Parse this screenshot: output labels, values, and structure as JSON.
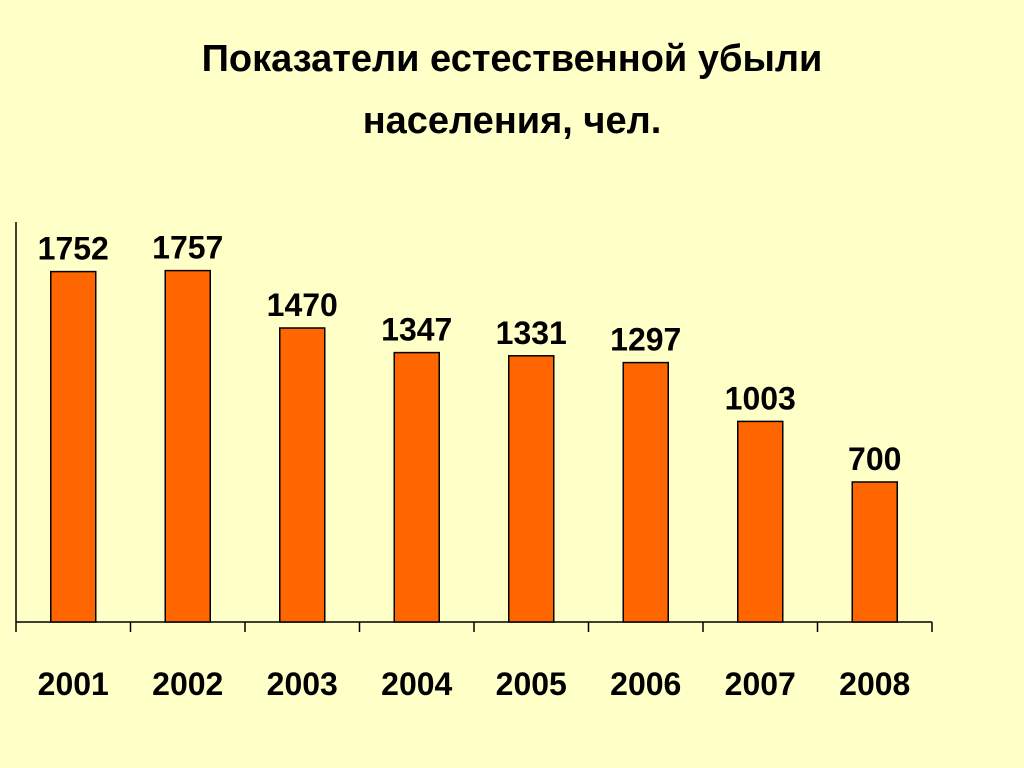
{
  "chart_data": {
    "type": "bar",
    "title_lines": [
      "Показатели естественной убыли",
      "населения, чел."
    ],
    "categories": [
      "2001",
      "2002",
      "2003",
      "2004",
      "2005",
      "2006",
      "2007",
      "2008"
    ],
    "values": [
      1752,
      1757,
      1470,
      1347,
      1331,
      1297,
      1003,
      700
    ],
    "value_labels": [
      "1752",
      "1757",
      "1470",
      "1347",
      "1331",
      "1297",
      "1003",
      "700"
    ],
    "xlabel": "",
    "ylabel": "",
    "ylim": [
      0,
      2000
    ],
    "grid": false,
    "legend": false,
    "bar_color": "#FF6600",
    "background_color": "#FFFFC8"
  }
}
